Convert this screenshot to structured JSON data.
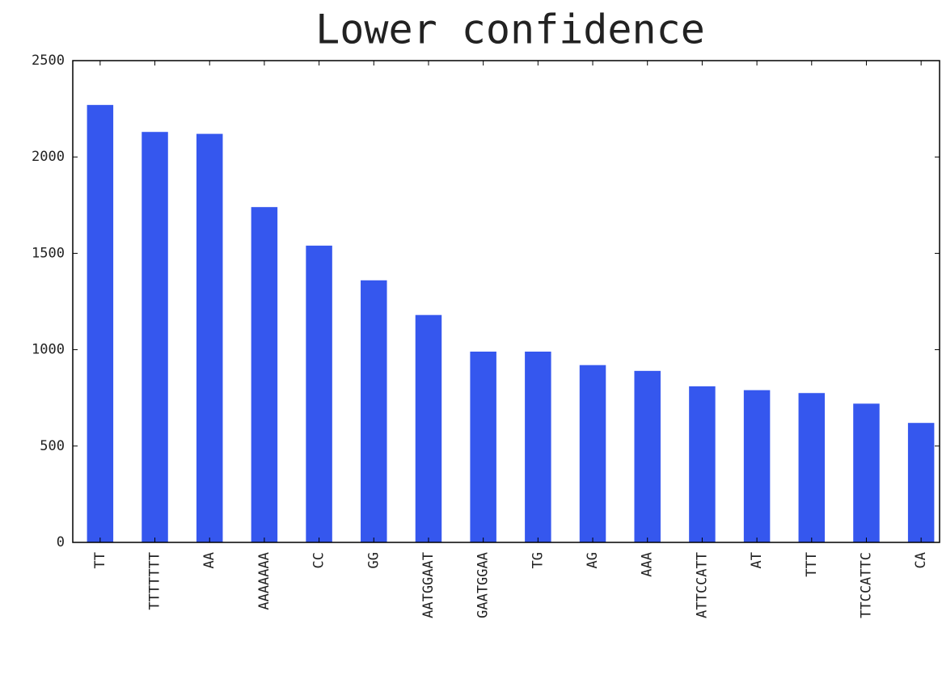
{
  "chart_data": {
    "type": "bar",
    "title": "Lower confidence",
    "categories": [
      "TT",
      "TTTTTTT",
      "AA",
      "AAAAAAA",
      "CC",
      "GG",
      "AATGGAAT",
      "GAATGGAA",
      "TG",
      "AG",
      "AAA",
      "ATTCCATT",
      "AT",
      "TTT",
      "TTCCATTC",
      "CA"
    ],
    "values": [
      2270,
      2130,
      2120,
      1740,
      1540,
      1360,
      1180,
      990,
      990,
      920,
      890,
      810,
      790,
      775,
      720,
      620
    ],
    "color": "#3557ee",
    "ylim": [
      0,
      2500
    ],
    "yticks": [
      0,
      500,
      1000,
      1500,
      2000,
      2500
    ],
    "grid": false
  }
}
